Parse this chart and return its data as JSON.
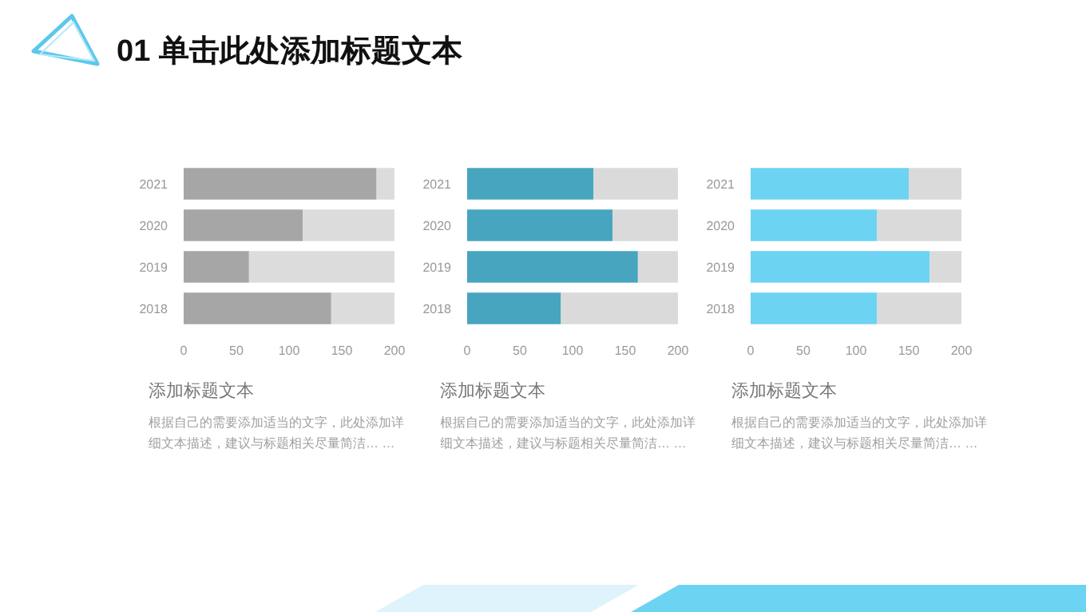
{
  "chart_data": [
    {
      "type": "other",
      "title": "01 单击此处添加标题文本"
    },
    {
      "type": "bar",
      "orientation": "horizontal",
      "stacked": true,
      "title": "添加标题文本",
      "annotations": [
        "根据自己的需要添加适当的文字，此处添加详细文本描述，建议与标题相关尽量简洁… …"
      ],
      "categories": [
        "2021",
        "2020",
        "2019",
        "2018"
      ],
      "series": [
        {
          "color": "#a6a6a6",
          "values": [
            183,
            113,
            62,
            140
          ]
        },
        {
          "color": "#dcdcdc",
          "values": [
            17,
            87,
            138,
            60
          ]
        }
      ],
      "xlim": [
        0,
        200
      ],
      "xticks": [
        0,
        50,
        100,
        150,
        200
      ],
      "grid": false
    },
    {
      "type": "bar",
      "orientation": "horizontal",
      "stacked": true,
      "title": "添加标题文本",
      "annotations": [
        "根据自己的需要添加适当的文字，此处添加详细文本描述，建议与标题相关尽量简洁… …"
      ],
      "categories": [
        "2021",
        "2020",
        "2019",
        "2018"
      ],
      "series": [
        {
          "color": "#47a5c0",
          "values": [
            120,
            138,
            162,
            89
          ]
        },
        {
          "color": "#dadada",
          "values": [
            80,
            62,
            38,
            111
          ]
        }
      ],
      "xlim": [
        0,
        200
      ],
      "xticks": [
        0,
        50,
        100,
        150,
        200
      ],
      "grid": false
    },
    {
      "type": "bar",
      "orientation": "horizontal",
      "stacked": true,
      "title": "添加标题文本",
      "annotations": [
        "根据自己的需要添加适当的文字，此处添加详细文本描述，建议与标题相关尽量简洁… …"
      ],
      "categories": [
        "2021",
        "2020",
        "2019",
        "2018"
      ],
      "series": [
        {
          "color": "#6dd3f2",
          "values": [
            150,
            120,
            170,
            120
          ]
        },
        {
          "color": "#dadada",
          "values": [
            50,
            80,
            30,
            80
          ]
        }
      ],
      "xlim": [
        0,
        200
      ],
      "xticks": [
        0,
        50,
        100,
        150,
        200
      ],
      "grid": false
    }
  ]
}
